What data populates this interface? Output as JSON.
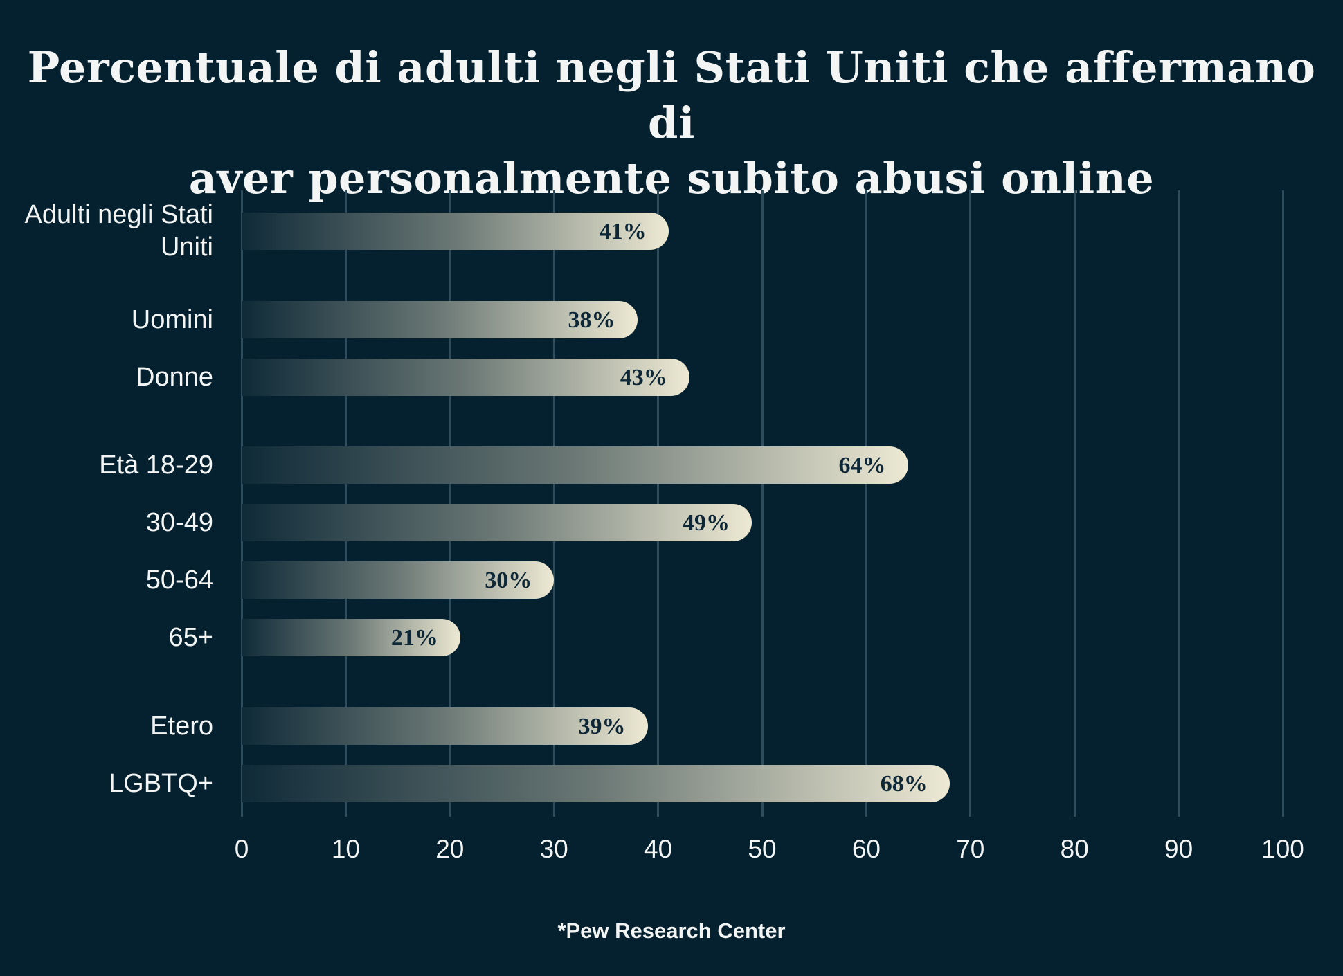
{
  "title_line1": "Percentuale di adulti negli Stati Uniti che affermano di",
  "title_line2": "aver personalmente subito abusi online",
  "source": "*Pew Research Center",
  "colors": {
    "background": "#05202f",
    "gridline": "#2e4c5c",
    "bar_gradient_start": "#0f2a38",
    "bar_gradient_mid": "#6b7875",
    "bar_gradient_end": "#ede9d3",
    "text_light": "#f2f5f3",
    "value_text": "#0e2737"
  },
  "chart_data": {
    "type": "bar",
    "orientation": "horizontal",
    "title": "Percentuale di adulti negli Stati Uniti che affermano di aver personalmente subito abusi online",
    "source": "*Pew Research Center",
    "categories": [
      "Adulti negli Stati Uniti",
      "Uomini",
      "Donne",
      "Età 18-29",
      "30-49",
      "50-64",
      "65+",
      "Etero",
      "LGBTQ+"
    ],
    "values": [
      41,
      38,
      43,
      64,
      49,
      30,
      21,
      39,
      68
    ],
    "value_labels": [
      "41%",
      "38%",
      "43%",
      "64%",
      "49%",
      "30%",
      "21%",
      "39%",
      "68%"
    ],
    "groups": [
      [
        0
      ],
      [
        1,
        2
      ],
      [
        3,
        4,
        5,
        6
      ],
      [
        7,
        8
      ]
    ],
    "xlabel": "",
    "ylabel": "",
    "xlim": [
      0,
      100
    ],
    "x_ticks": [
      0,
      10,
      20,
      30,
      40,
      50,
      60,
      70,
      80,
      90,
      100
    ],
    "grid": "vertical",
    "legend": "none"
  }
}
